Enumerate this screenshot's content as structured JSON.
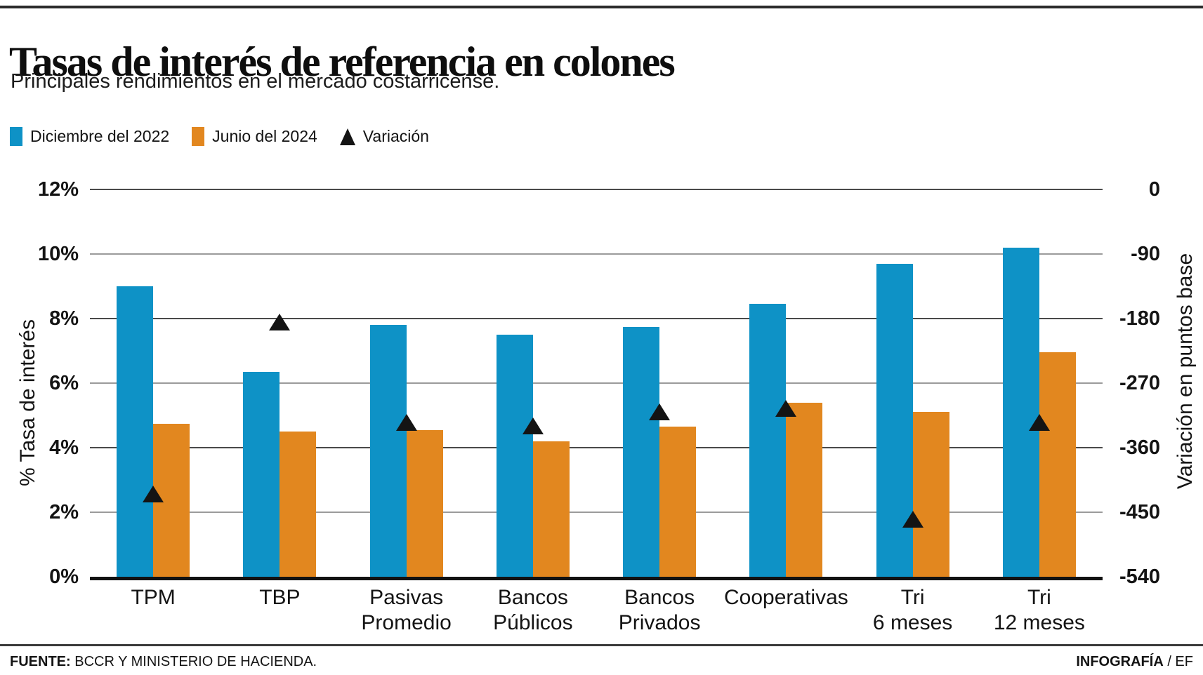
{
  "page": {
    "title": "Tasas de interés de referencia en colones",
    "subtitle": "Principales rendimientos en el mercado costarricense.",
    "footer": {
      "source_label": "FUENTE:",
      "source_text": " BCCR Y MINISTERIO DE HACIENDA.",
      "credit_bold": "INFOGRAFÍA",
      "credit_rest": " / EF"
    }
  },
  "legend": [
    {
      "label": "Diciembre del 2022",
      "marker": "square",
      "color": "#0e92c6"
    },
    {
      "label": "Junio del 2024",
      "marker": "square",
      "color": "#e2871f"
    },
    {
      "label": "Variación",
      "marker": "triangle",
      "color": "#141414"
    }
  ],
  "chart_data": {
    "type": "bar",
    "categories": [
      "TPM",
      "TBP",
      "Pasivas Promedio",
      "Bancos Públicos",
      "Bancos Privados",
      "Cooperativas",
      "Tri 6 meses",
      "Tri 12 meses"
    ],
    "category_display_lines": [
      [
        "TPM"
      ],
      [
        "TBP"
      ],
      [
        "Pasivas",
        "Promedio"
      ],
      [
        "Bancos",
        "Públicos"
      ],
      [
        "Bancos",
        "Privados"
      ],
      [
        "Cooperativas"
      ],
      [
        "Tri",
        "6 meses"
      ],
      [
        "Tri",
        "12 meses"
      ]
    ],
    "series": [
      {
        "name": "Diciembre del 2022",
        "type": "bar",
        "axis": "left",
        "color": "#0e92c6",
        "values": [
          9.0,
          6.35,
          7.8,
          7.5,
          7.75,
          8.45,
          9.7,
          10.2
        ]
      },
      {
        "name": "Junio del 2024",
        "type": "bar",
        "axis": "left",
        "color": "#e2871f",
        "values": [
          4.75,
          4.5,
          4.55,
          4.2,
          4.65,
          5.4,
          5.1,
          6.95
        ]
      },
      {
        "name": "Variación",
        "type": "triangle-marker",
        "axis": "right",
        "color": "#141414",
        "values": [
          -425,
          -185,
          -325,
          -330,
          -310,
          -305,
          -460,
          -325
        ]
      }
    ],
    "left_axis": {
      "label": "% Tasa de interés",
      "min": 0,
      "max": 12,
      "unit": "%",
      "ticks": [
        "12%",
        "10%",
        "8%",
        "6%",
        "4%",
        "2%",
        "0%"
      ]
    },
    "right_axis": {
      "label": "Variación en puntos base",
      "min": -540,
      "max": 0,
      "ticks": [
        "0",
        "-90",
        "-180",
        "-270",
        "-360",
        "-450",
        "-540"
      ]
    },
    "grid": "horizontal",
    "gridline_colors": {
      "major": "#4a4a4a",
      "minor": "#9b9b9b"
    },
    "legend_position": "top-left"
  }
}
